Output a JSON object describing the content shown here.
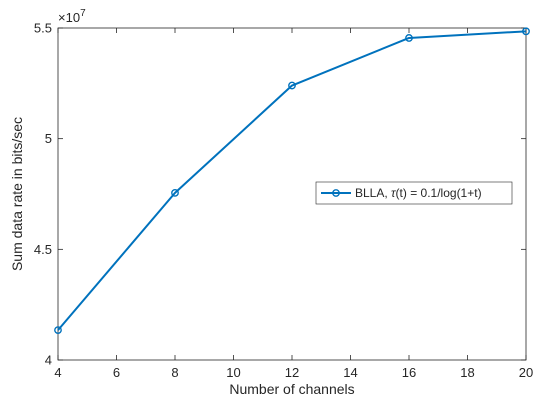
{
  "chart_data": {
    "type": "line",
    "x": [
      4,
      8,
      12,
      16,
      20
    ],
    "series": [
      {
        "name": "BLLA, τ(t) = 0.1/log(1+t)",
        "values": [
          4.135,
          4.755,
          5.24,
          5.455,
          5.485
        ],
        "color": "#0072BD",
        "marker": "circle"
      }
    ],
    "xlabel": "Number of channels",
    "ylabel": "Sum data rate in bits/sec",
    "xlim": [
      4,
      20
    ],
    "ylim": [
      4,
      5.5
    ],
    "xticks": [
      4,
      6,
      8,
      10,
      12,
      14,
      16,
      18,
      20
    ],
    "yticks": [
      4,
      4.5,
      5,
      5.5
    ],
    "ytick_labels": [
      "4",
      "4.5",
      "5",
      "5.5"
    ],
    "y_exponent_label": "×10",
    "y_exponent_power": "7",
    "grid": false,
    "legend": {
      "placement": "right",
      "label_prefix": "BLLA, ",
      "label_tau": "τ",
      "label_suffix": "(t) = 0.1/log(1+t)"
    }
  }
}
